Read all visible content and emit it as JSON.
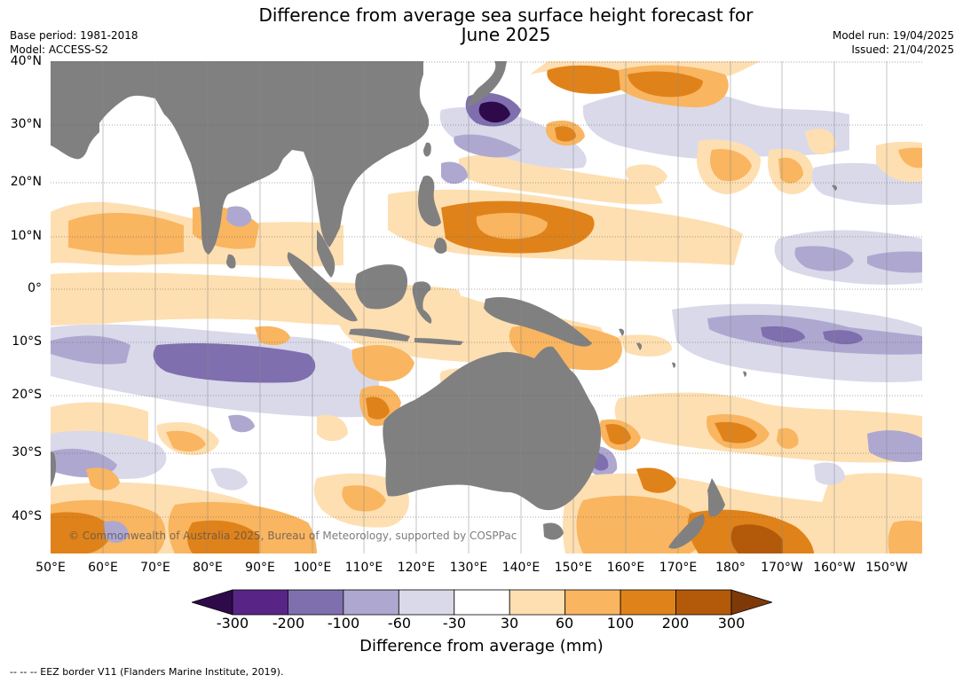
{
  "title_line1": "Difference from average sea surface height forecast for",
  "title_line2": "June 2025",
  "base_period": "Base period: 1981-2018",
  "model": "Model: ACCESS-S2",
  "model_run": "Model run: 19/04/2025",
  "issued": "Issued: 21/04/2025",
  "lat_labels": [
    "40°N",
    "30°N",
    "20°N",
    "10°N",
    "0°",
    "10°S",
    "20°S",
    "30°S",
    "40°S"
  ],
  "lon_labels": [
    "50°E",
    "60°E",
    "70°E",
    "80°E",
    "90°E",
    "100°E",
    "110°E",
    "120°E",
    "130°E",
    "140°E",
    "150°E",
    "160°E",
    "170°E",
    "180°",
    "170°W",
    "160°W",
    "150°W"
  ],
  "copyright": "© Commonwealth of Australia 2025, Bureau of Meteorology, supported by COSPPac",
  "colorbar": {
    "ticks": [
      "-300",
      "-200",
      "-100",
      "-60",
      "-30",
      "30",
      "60",
      "100",
      "200",
      "300"
    ],
    "colors": [
      "#582586",
      "#7f6fae",
      "#aea8d0",
      "#d9d9ea",
      "#ffffff",
      "#fedfb1",
      "#f9b560",
      "#e0821a",
      "#b25a0a"
    ],
    "under_color": "#2e0a4a",
    "over_color": "#7d3a08",
    "label": "Difference from average (mm)"
  },
  "land_color": "#808080",
  "eez_note": "--  --  -- EEZ border V11 (Flanders Marine Institute, 2019)."
}
